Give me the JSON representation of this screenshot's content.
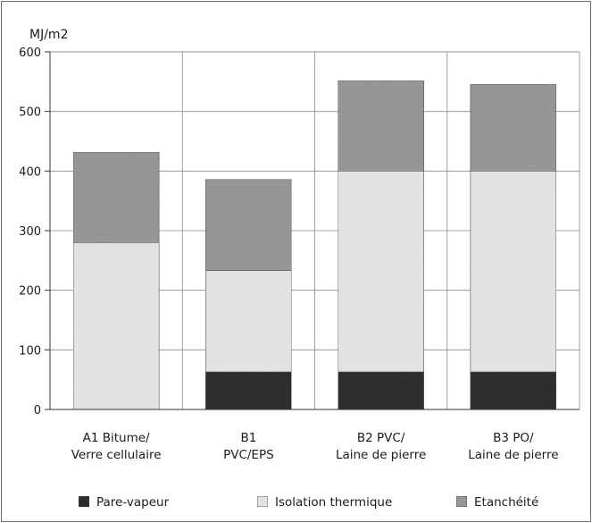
{
  "chart_data": {
    "type": "bar",
    "stacked": true,
    "ylabel": "MJ/m2",
    "ylim": [
      0,
      600
    ],
    "yticks": [
      0,
      100,
      200,
      300,
      400,
      500,
      600
    ],
    "grid": true,
    "legend_position": "bottom",
    "categories": [
      [
        "A1 Bitume/",
        "Verre cellulaire"
      ],
      [
        "B1",
        "PVC/EPS"
      ],
      [
        "B2  PVC/",
        "Laine de pierre"
      ],
      [
        "B3  PO/",
        "Laine de pierre"
      ]
    ],
    "series": [
      {
        "name": "Pare-vapeur",
        "color": "#2e2e2e",
        "values": [
          0,
          63,
          63,
          63
        ]
      },
      {
        "name": "Isolation thermique",
        "color": "#e8e8e8",
        "values": [
          280,
          170,
          337,
          337
        ]
      },
      {
        "name": "Etanchéité",
        "color": "#9a9a9a",
        "values": [
          152,
          153,
          152,
          146
        ]
      }
    ]
  }
}
